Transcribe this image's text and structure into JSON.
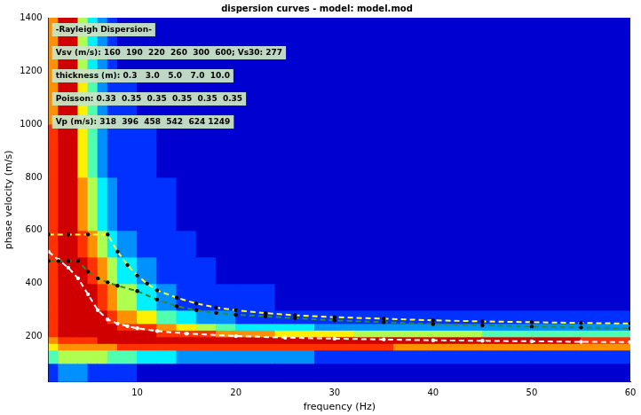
{
  "chart_data": {
    "type": "line",
    "title": "dispersion curves - model: model.mod",
    "x_label": "frequency (Hz)",
    "y_label": "phase velocity (m/s)",
    "xlim": [
      1,
      60
    ],
    "ylim": [
      30,
      1400
    ],
    "xticks": [
      10,
      20,
      30,
      40,
      50,
      60
    ],
    "yticks": [
      200,
      400,
      600,
      800,
      1000,
      1200,
      1400
    ],
    "grid": false,
    "annotations": [
      "-Rayleigh Dispersion-",
      "Vsv (m/s): 160  190  220  260  300  600; Vs30: 277",
      "thickness (m): 0.3   3.0   5.0   7.0  10.0",
      "Poisson: 0.33  0.35  0.35  0.35  0.35  0.35",
      "Vp (m/s): 318  396  458  542  624 1249"
    ],
    "heatmap": {
      "x_edges": [
        1,
        2,
        3,
        4,
        5,
        6,
        7,
        8,
        10,
        12,
        14,
        16,
        18,
        20,
        24,
        28,
        32,
        36,
        40,
        45,
        50,
        55,
        60
      ],
      "y_edges": [
        30,
        100,
        150,
        175,
        200,
        225,
        250,
        300,
        400,
        500,
        600,
        800,
        1000,
        1200,
        1400
      ],
      "cells": [
        [
          2,
          5,
          7,
          8,
          9,
          9,
          9,
          9,
          9,
          9,
          9,
          9,
          8,
          8
        ],
        [
          3,
          6,
          8,
          9,
          10,
          10,
          10,
          10,
          10,
          10,
          10,
          10,
          10,
          10
        ],
        [
          3,
          6,
          8,
          9,
          10,
          10,
          10,
          10,
          10,
          10,
          10,
          10,
          10,
          10
        ],
        [
          3,
          6,
          8,
          9,
          10,
          10,
          10,
          10,
          10,
          9,
          8,
          7,
          7,
          6
        ],
        [
          2,
          6,
          8,
          9,
          10,
          10,
          10,
          10,
          9,
          8,
          6,
          5,
          5,
          4
        ],
        [
          2,
          6,
          8,
          10,
          10,
          10,
          10,
          9,
          8,
          6,
          4,
          3,
          3,
          3
        ],
        [
          2,
          5,
          8,
          10,
          10,
          10,
          9,
          8,
          6,
          4,
          3,
          2,
          2,
          2
        ],
        [
          2,
          5,
          9,
          10,
          10,
          9,
          8,
          6,
          4,
          3,
          2,
          2,
          2,
          1
        ],
        [
          1,
          4,
          9,
          10,
          10,
          9,
          7,
          4,
          3,
          2,
          2,
          2,
          1,
          1
        ],
        [
          1,
          4,
          9,
          10,
          9,
          8,
          5,
          3,
          2,
          2,
          2,
          1,
          1,
          1
        ],
        [
          1,
          3,
          9,
          10,
          9,
          7,
          4,
          2,
          2,
          2,
          1,
          1,
          1,
          1
        ],
        [
          1,
          3,
          9,
          10,
          9,
          6,
          3,
          2,
          2,
          1,
          1,
          1,
          1,
          1
        ],
        [
          1,
          3,
          9,
          10,
          8,
          5,
          3,
          2,
          1,
          1,
          1,
          1,
          1,
          1
        ],
        [
          1,
          3,
          9,
          10,
          8,
          4,
          2,
          2,
          1,
          1,
          1,
          1,
          1,
          1
        ],
        [
          1,
          3,
          9,
          10,
          7,
          4,
          2,
          1,
          1,
          1,
          1,
          1,
          1,
          1
        ],
        [
          1,
          2,
          9,
          10,
          7,
          3,
          2,
          1,
          1,
          1,
          1,
          1,
          1,
          1
        ],
        [
          1,
          2,
          9,
          10,
          6,
          3,
          2,
          1,
          1,
          1,
          1,
          1,
          1,
          1
        ],
        [
          1,
          2,
          8,
          10,
          6,
          3,
          2,
          1,
          1,
          1,
          1,
          1,
          1,
          1
        ],
        [
          1,
          2,
          8,
          10,
          6,
          3,
          2,
          1,
          1,
          1,
          1,
          1,
          1,
          1
        ],
        [
          1,
          2,
          8,
          10,
          5,
          3,
          2,
          1,
          1,
          1,
          1,
          1,
          1,
          1
        ],
        [
          1,
          2,
          8,
          10,
          5,
          3,
          2,
          1,
          1,
          1,
          1,
          1,
          1,
          1
        ],
        [
          1,
          2,
          8,
          9,
          5,
          3,
          2,
          1,
          1,
          1,
          1,
          1,
          1,
          1
        ]
      ]
    },
    "series": [
      {
        "color": "#ffff33",
        "line_style": "dashed",
        "marker": "circle",
        "x": [
          1,
          3,
          5,
          7,
          8,
          9,
          10,
          11,
          12,
          14,
          16,
          18,
          20,
          23,
          26,
          30,
          35,
          40,
          45,
          50,
          55,
          60
        ],
        "values": [
          585,
          585,
          585,
          585,
          520,
          470,
          430,
          400,
          375,
          347,
          325,
          310,
          300,
          289,
          281,
          274,
          268,
          262,
          258,
          255,
          252,
          250
        ]
      },
      {
        "color": "#2e8b2e",
        "line_style": "dashed",
        "marker": "circle",
        "x": [
          1,
          2,
          3,
          4,
          5,
          6,
          7,
          8,
          10,
          12,
          14,
          16,
          18,
          20,
          23,
          26,
          30,
          35,
          40,
          45,
          50,
          55,
          60
        ],
        "values": [
          485,
          485,
          485,
          485,
          445,
          420,
          405,
          392,
          372,
          340,
          315,
          300,
          290,
          283,
          277,
          270,
          262,
          255,
          248,
          243,
          239,
          235,
          232
        ]
      },
      {
        "color": "#ffffff",
        "line_style": "dashed",
        "marker": "circle",
        "x": [
          1,
          2,
          3,
          4,
          5,
          6,
          7,
          8,
          9,
          10,
          12,
          15,
          20,
          25,
          30,
          35,
          40,
          45,
          50,
          55,
          60
        ],
        "values": [
          520,
          490,
          460,
          420,
          360,
          300,
          265,
          250,
          240,
          232,
          222,
          212,
          203,
          197,
          193,
          190,
          187,
          185,
          183,
          181,
          180
        ]
      }
    ]
  }
}
